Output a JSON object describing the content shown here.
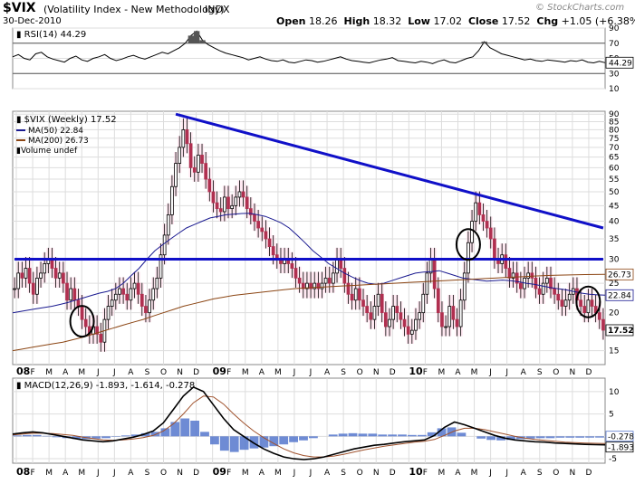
{
  "header": {
    "symbol": "$VIX",
    "name": "(Volatility Index - New Methodology)",
    "exchange": "INDX",
    "date": "30-Dec-2010",
    "open_label": "Open",
    "open": "18.26",
    "high_label": "High",
    "high": "18.32",
    "low_label": "Low",
    "low": "17.02",
    "close_label": "Close",
    "close": "17.52",
    "chg_label": "Chg",
    "chg": "+1.05 (+6.38%)",
    "logo": "© StockCharts.com"
  },
  "colors": {
    "trendline": "#1010c8",
    "ma50": "#1a1a90",
    "ma200": "#8b4513",
    "candle": "#b03050",
    "candle_highlight": "#ffd8e8",
    "macd_line": "#000000",
    "signal_line": "#a0522d",
    "histogram": "#5577cc",
    "rsi_line": "#000000",
    "grid": "#dddddd"
  },
  "chart_data": [
    {
      "type": "line",
      "panel": "RSI",
      "label": "RSI(14) 44.29",
      "ylim": [
        10,
        90
      ],
      "yticks": [
        10,
        30,
        50,
        70,
        90
      ],
      "reference_lines": [
        30,
        70
      ],
      "last_value_label": "44.29",
      "series": [
        {
          "name": "RSI(14)",
          "values": [
            52,
            55,
            50,
            48,
            56,
            58,
            52,
            49,
            47,
            45,
            50,
            53,
            48,
            46,
            50,
            52,
            55,
            50,
            47,
            49,
            52,
            54,
            51,
            49,
            52,
            55,
            58,
            56,
            60,
            64,
            70,
            80,
            86,
            74,
            68,
            64,
            60,
            57,
            55,
            53,
            51,
            48,
            50,
            52,
            49,
            47,
            46,
            48,
            45,
            44,
            46,
            48,
            47,
            45,
            46,
            48,
            50,
            52,
            49,
            47,
            46,
            45,
            44,
            46,
            48,
            49,
            51,
            47,
            46,
            45,
            44,
            46,
            45,
            43,
            46,
            48,
            45,
            44,
            47,
            50,
            52,
            60,
            72,
            64,
            60,
            56,
            54,
            52,
            50,
            48,
            49,
            47,
            46,
            48,
            47,
            46,
            45,
            47,
            46,
            48,
            45,
            44,
            46,
            44.29
          ]
        }
      ]
    },
    {
      "type": "candlestick",
      "panel": "Price",
      "label": "$VIX (Weekly) 17.52",
      "legend": [
        "MA(50) 22.84",
        "MA(200) 26.73",
        "Volume undef"
      ],
      "yscale": "log",
      "ylim": [
        13.5,
        92
      ],
      "yticks": [
        15,
        20,
        25,
        30,
        35,
        40,
        45,
        50,
        55,
        60,
        65,
        70,
        75,
        80,
        85,
        90
      ],
      "price_labels": [
        "26.73",
        "22.84",
        "17.52"
      ],
      "x_ticks": [
        "08",
        "F",
        "M",
        "A",
        "M",
        "J",
        "J",
        "A",
        "S",
        "O",
        "N",
        "D",
        "09",
        "F",
        "M",
        "A",
        "M",
        "J",
        "J",
        "A",
        "S",
        "O",
        "N",
        "D",
        "10",
        "F",
        "M",
        "A",
        "M",
        "J",
        "J",
        "A",
        "S",
        "O",
        "N",
        "D"
      ],
      "closes": [
        24,
        27,
        26,
        28,
        25,
        23,
        26,
        27,
        29,
        30,
        28,
        26,
        27,
        25,
        22,
        24,
        22,
        21,
        19,
        18,
        17,
        18,
        17,
        16,
        19,
        21,
        22,
        23,
        24,
        23,
        22,
        24,
        25,
        23,
        21,
        20,
        22,
        24,
        26,
        31,
        36,
        42,
        52,
        62,
        70,
        80,
        72,
        60,
        58,
        66,
        62,
        55,
        50,
        46,
        44,
        43,
        48,
        44,
        45,
        48,
        50,
        48,
        44,
        42,
        40,
        38,
        37,
        35,
        33,
        31,
        30,
        29,
        30,
        29,
        28,
        26,
        25,
        24,
        25,
        24,
        25,
        24,
        25,
        26,
        25,
        27,
        30,
        28,
        25,
        23,
        22,
        24,
        22,
        21,
        20,
        19,
        21,
        23,
        20,
        18,
        19,
        21,
        20,
        19,
        18,
        17,
        17.5,
        19,
        20,
        23,
        27,
        30,
        24,
        20,
        18,
        18,
        21,
        19,
        18,
        22,
        27,
        34,
        40,
        46,
        42,
        40,
        38,
        35,
        30,
        29,
        31,
        28,
        26,
        27,
        25,
        24,
        26,
        27,
        26,
        24,
        23,
        25,
        26,
        24,
        23,
        22,
        21,
        22,
        23,
        24,
        22,
        21,
        20,
        22,
        21,
        20,
        19,
        17.52
      ],
      "highs_lows_note": "per-week range approximated from closes",
      "trendlines": [
        {
          "name": "descending resistance",
          "from": {
            "x": 43,
            "y": 90
          },
          "to": {
            "x": 157,
            "y": 38
          }
        },
        {
          "name": "horizontal support",
          "from": {
            "x": 0,
            "y": 30
          },
          "to": {
            "x": 157,
            "y": 30
          }
        }
      ],
      "circled_weeks": [
        18,
        121,
        153
      ],
      "series": [
        {
          "name": "MA(50)",
          "last": 22.84,
          "values": [
            20,
            20.2,
            20.4,
            20.6,
            20.8,
            21,
            21.3,
            21.6,
            22,
            22.4,
            22.8,
            23.2,
            23.5,
            24,
            25,
            26.5,
            28,
            30,
            32,
            33.5,
            35,
            36.5,
            38,
            39,
            40,
            41,
            41.5,
            42,
            42.2,
            42.4,
            42.5,
            42,
            41.5,
            40.5,
            39.5,
            38,
            36,
            34,
            32,
            30.5,
            29,
            28,
            27,
            26.2,
            25.5,
            25,
            24.8,
            25,
            25.5,
            26,
            26.5,
            27,
            27.2,
            27.3,
            27.5,
            27,
            26.5,
            26,
            25.8,
            25.6,
            25.4,
            25.5,
            25.6,
            25.5,
            25.3,
            25,
            24.8,
            24.5,
            24.2,
            24,
            23.8,
            23.5,
            23.2,
            23,
            22.9,
            22.84
          ]
        },
        {
          "name": "MA(200)",
          "last": 26.73,
          "values": [
            15,
            15.2,
            15.4,
            15.6,
            15.8,
            16,
            16.3,
            16.6,
            17,
            17.4,
            17.8,
            18.2,
            18.6,
            19,
            19.5,
            20,
            20.5,
            21,
            21.4,
            21.8,
            22.2,
            22.5,
            22.8,
            23,
            23.2,
            23.4,
            23.6,
            23.8,
            24,
            24.1,
            24.2,
            24.3,
            24.4,
            24.5,
            24.6,
            24.7,
            24.8,
            24.9,
            25,
            25.1,
            25.2,
            25.3,
            25.4,
            25.5,
            25.6,
            25.7,
            25.8,
            25.9,
            26,
            26.1,
            26.2,
            26.3,
            26.4,
            26.5,
            26.55,
            26.6,
            26.65,
            26.7,
            26.72,
            26.73
          ]
        }
      ]
    },
    {
      "type": "line",
      "panel": "MACD",
      "label": "MACD(12,26,9) -1.893, -1.614, -0.278",
      "ylim": [
        -6,
        13
      ],
      "yticks": [
        -5,
        0,
        5,
        10
      ],
      "last_value_labels": [
        "-0.278",
        "-1.893"
      ],
      "x_ticks": [
        "08",
        "F",
        "M",
        "A",
        "M",
        "J",
        "J",
        "A",
        "S",
        "O",
        "N",
        "D",
        "09",
        "F",
        "M",
        "A",
        "M",
        "J",
        "J",
        "A",
        "S",
        "O",
        "N",
        "D",
        "10",
        "F",
        "M",
        "A",
        "M",
        "J",
        "J",
        "A",
        "S",
        "O",
        "N",
        "D"
      ],
      "series": [
        {
          "name": "MACD(12,26,9)",
          "values": [
            0.5,
            0.8,
            1,
            0.8,
            0.4,
            0,
            -0.4,
            -0.8,
            -1,
            -1.2,
            -1,
            -0.6,
            -0.2,
            0.4,
            1.2,
            3,
            6,
            9,
            11,
            10,
            7,
            4,
            1.5,
            0,
            -1.5,
            -2.8,
            -3.8,
            -4.6,
            -5,
            -5.2,
            -5,
            -4.6,
            -4,
            -3.4,
            -2.8,
            -2.4,
            -2,
            -1.8,
            -1.5,
            -1.2,
            -1,
            -0.8,
            0.2,
            2,
            3.2,
            2.6,
            1.8,
            1,
            0.2,
            -0.4,
            -0.8,
            -1,
            -1.2,
            -1.3,
            -1.5,
            -1.6,
            -1.7,
            -1.8,
            -1.85,
            -1.893
          ]
        },
        {
          "name": "Signal",
          "values": [
            0.3,
            0.5,
            0.7,
            0.7,
            0.6,
            0.4,
            0.2,
            -0.2,
            -0.5,
            -0.8,
            -0.9,
            -0.8,
            -0.6,
            -0.3,
            0.2,
            1.2,
            2.8,
            5,
            7.5,
            9,
            8.8,
            7.2,
            5,
            3,
            1.2,
            -0.3,
            -1.6,
            -2.8,
            -3.7,
            -4.3,
            -4.6,
            -4.6,
            -4.4,
            -4,
            -3.5,
            -3,
            -2.6,
            -2.2,
            -1.9,
            -1.6,
            -1.3,
            -1.1,
            -0.7,
            0.2,
            1.2,
            1.8,
            1.8,
            1.5,
            1,
            0.5,
            0,
            -0.4,
            -0.7,
            -0.9,
            -1.1,
            -1.3,
            -1.4,
            -1.5,
            -1.56,
            -1.614
          ]
        },
        {
          "name": "Histogram",
          "values": [
            0.2,
            0.3,
            0.3,
            0.1,
            -0.2,
            -0.4,
            -0.6,
            -0.6,
            -0.5,
            -0.4,
            -0.1,
            0.2,
            0.4,
            0.7,
            1,
            1.8,
            3.2,
            4,
            3.5,
            1,
            -1.8,
            -3.2,
            -3.5,
            -3,
            -2.7,
            -2.5,
            -2.2,
            -1.8,
            -1.3,
            -0.9,
            -0.4,
            0,
            0.4,
            0.6,
            0.7,
            0.6,
            0.6,
            0.4,
            0.4,
            0.4,
            0.3,
            0.3,
            0.9,
            1.8,
            2,
            0.8,
            0,
            -0.5,
            -0.8,
            -0.9,
            -0.8,
            -0.6,
            -0.5,
            -0.4,
            -0.4,
            -0.3,
            -0.3,
            -0.3,
            -0.29,
            -0.278
          ]
        }
      ]
    }
  ]
}
